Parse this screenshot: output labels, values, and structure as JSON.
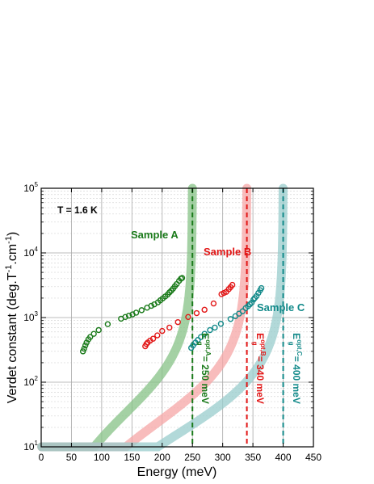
{
  "chart_data": {
    "type": "scatter",
    "temperature_label": "T = 1.6 K",
    "xlabel": "Energy (meV)",
    "ylabel": {
      "main": "Verdet constant (deg.T",
      "sup1": "-1",
      "mid": ".cm",
      "sup2": "-1",
      "end": ")"
    },
    "xlim": [
      0,
      450
    ],
    "ylim": [
      10,
      100000
    ],
    "yscale": "log",
    "grid": true,
    "x_ticks": [
      "0",
      "50",
      "100",
      "150",
      "200",
      "250",
      "300",
      "350",
      "400",
      "450"
    ],
    "y_ticks": [
      {
        "base": "10",
        "exp": "1"
      },
      {
        "base": "10",
        "exp": "2"
      },
      {
        "base": "10",
        "exp": "3"
      },
      {
        "base": "10",
        "exp": "4"
      },
      {
        "base": "10",
        "exp": "5"
      }
    ],
    "series": [
      {
        "name": "Sample A",
        "color": "#1a7a1a",
        "fit_color": "#86c286",
        "gap": 250,
        "gap_label": {
          "e": "E",
          "sup": "opt,A",
          "sub": "g",
          "value": " = 250 meV"
        },
        "points": [
          [
            69,
            300
          ],
          [
            71,
            330
          ],
          [
            73,
            370
          ],
          [
            75,
            410
          ],
          [
            78,
            460
          ],
          [
            81,
            500
          ],
          [
            87,
            560
          ],
          [
            95,
            640
          ],
          [
            110,
            790
          ],
          [
            132,
            960
          ],
          [
            139,
            1020
          ],
          [
            145,
            1070
          ],
          [
            151,
            1120
          ],
          [
            157,
            1190
          ],
          [
            166,
            1300
          ],
          [
            175,
            1420
          ],
          [
            182,
            1520
          ],
          [
            187,
            1600
          ],
          [
            193,
            1720
          ],
          [
            197,
            1850
          ],
          [
            201,
            1980
          ],
          [
            205,
            2120
          ],
          [
            209,
            2270
          ],
          [
            212,
            2450
          ],
          [
            215,
            2600
          ],
          [
            218,
            2800
          ],
          [
            221,
            3050
          ],
          [
            224,
            3300
          ],
          [
            228,
            3700
          ],
          [
            231,
            4000
          ],
          [
            233,
            4100
          ]
        ]
      },
      {
        "name": "Sample B",
        "color": "#e21616",
        "fit_color": "#f5a6a6",
        "gap": 340,
        "gap_label": {
          "e": "E",
          "sup": "opt,B",
          "sub": "g",
          "value": " = 340 meV"
        },
        "points": [
          [
            172,
            360
          ],
          [
            174,
            390
          ],
          [
            176,
            410
          ],
          [
            180,
            440
          ],
          [
            185,
            470
          ],
          [
            192,
            530
          ],
          [
            200,
            620
          ],
          [
            212,
            700
          ],
          [
            226,
            850
          ],
          [
            243,
            1020
          ],
          [
            257,
            1170
          ],
          [
            270,
            1320
          ],
          [
            285,
            1650
          ],
          [
            298,
            2300
          ],
          [
            302,
            2400
          ],
          [
            306,
            2500
          ],
          [
            310,
            2750
          ],
          [
            313,
            2950
          ],
          [
            316,
            3200
          ]
        ]
      },
      {
        "name": "Sample C",
        "color": "#138a8a",
        "fit_color": "#98cccc",
        "gap": 400,
        "gap_label": {
          "e": "E",
          "sup": "opt,C",
          "sub": "g",
          "value": " = 400 meV"
        },
        "points": [
          [
            248,
            340
          ],
          [
            251,
            370
          ],
          [
            255,
            410
          ],
          [
            259,
            450
          ],
          [
            264,
            500
          ],
          [
            270,
            560
          ],
          [
            279,
            640
          ],
          [
            287,
            700
          ],
          [
            297,
            800
          ],
          [
            313,
            950
          ],
          [
            321,
            1050
          ],
          [
            327,
            1150
          ],
          [
            333,
            1250
          ],
          [
            338,
            1400
          ],
          [
            342,
            1500
          ],
          [
            345,
            1600
          ],
          [
            348,
            1700
          ],
          [
            351,
            1900
          ],
          [
            353,
            2000
          ],
          [
            356,
            2150
          ],
          [
            359,
            2400
          ],
          [
            362,
            2650
          ],
          [
            364,
            2850
          ]
        ]
      }
    ]
  }
}
